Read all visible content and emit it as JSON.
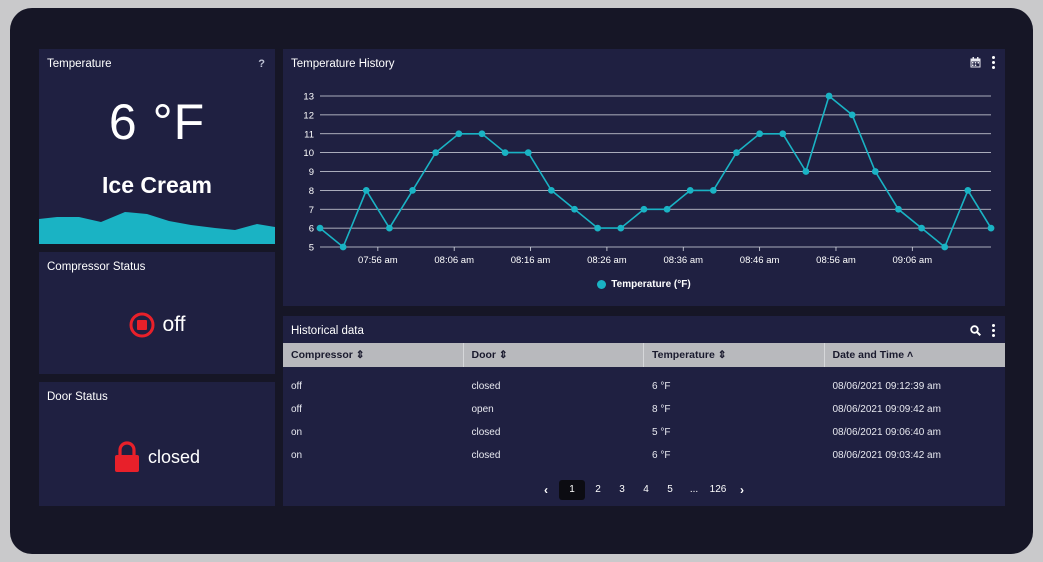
{
  "temperature_card": {
    "title": "Temperature",
    "help": "?",
    "value": "6 °F",
    "product": "Ice Cream"
  },
  "compressor_card": {
    "title": "Compressor Status",
    "status": "off",
    "icon": "stop-circle-icon",
    "icon_color": "#e8202a"
  },
  "door_card": {
    "title": "Door Status",
    "status": "closed",
    "icon": "lock-icon",
    "icon_color": "#e8202a"
  },
  "history_chart": {
    "title": "Temperature History",
    "icons": [
      "calendar-icon",
      "more-vert-icon"
    ]
  },
  "chart_data": {
    "type": "line",
    "series": [
      {
        "name": "Temperature (°F)",
        "color": "#1ab3c4",
        "values": [
          6,
          5,
          8,
          6,
          8,
          10,
          11,
          11,
          10,
          10,
          8,
          7,
          6,
          6,
          7,
          7,
          8,
          8,
          10,
          11,
          11,
          9,
          13,
          12,
          9,
          7,
          6,
          5,
          8,
          6
        ]
      }
    ],
    "x_tick_labels": [
      "07:56 am",
      "08:06 am",
      "08:16 am",
      "08:26 am",
      "08:36 am",
      "08:46 am",
      "08:56 am",
      "09:06 am"
    ],
    "y_ticks": [
      5,
      6,
      7,
      8,
      9,
      10,
      11,
      12,
      13
    ],
    "ylim": [
      5,
      13
    ],
    "grid": true,
    "legend_position": "bottom"
  },
  "table": {
    "title": "Historical data",
    "icons": [
      "search-icon",
      "more-vert-icon"
    ],
    "columns": [
      "Compressor ⇕",
      "Door ⇕",
      "Temperature ⇕",
      "Date and Time ˄"
    ],
    "rows": [
      [
        "off",
        "closed",
        "6 °F",
        "08/06/2021 09:12:39 am"
      ],
      [
        "off",
        "open",
        "8 °F",
        "08/06/2021 09:09:42 am"
      ],
      [
        "on",
        "closed",
        "5 °F",
        "08/06/2021 09:06:40 am"
      ],
      [
        "on",
        "closed",
        "6 °F",
        "08/06/2021 09:03:42 am"
      ]
    ],
    "pagination": {
      "prev": "‹",
      "pages": [
        "1",
        "2",
        "3",
        "4",
        "5",
        "...",
        "126"
      ],
      "current": "1",
      "next": "›"
    }
  },
  "colors": {
    "background": "#161626",
    "panel": "#1f2041",
    "accent": "#1ab3c4",
    "alert": "#e8202a"
  }
}
